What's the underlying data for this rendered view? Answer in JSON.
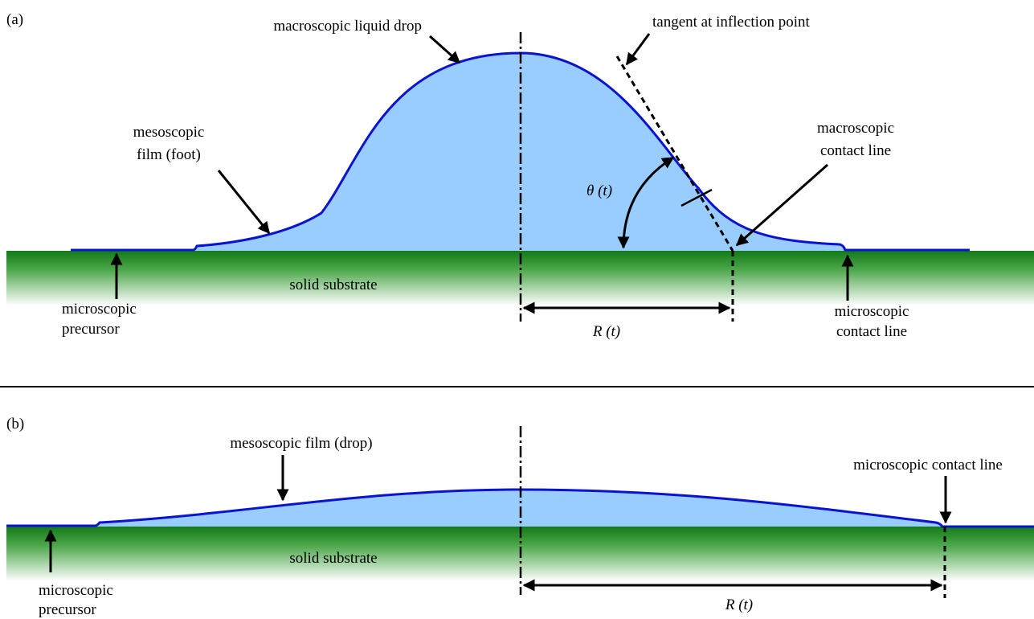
{
  "panel_a": {
    "label": "(a)",
    "drop_label": "macroscopic liquid drop",
    "tangent_label": "tangent at inflection point",
    "foot_label": [
      "mesoscopic",
      "film (foot)"
    ],
    "macro_contact_label": [
      "macroscopic",
      "contact line"
    ],
    "angle_label": "θ (t)",
    "substrate_label": "solid substrate",
    "precursor_label": [
      "microscopic",
      "precursor"
    ],
    "radius_label": "R (t)",
    "micro_contact_label": [
      "microscopic",
      "contact line"
    ]
  },
  "panel_b": {
    "label": "(b)",
    "drop_label": "mesoscopic film (drop)",
    "micro_contact_label": "microscopic contact line",
    "substrate_label": "solid substrate",
    "precursor_label": [
      "microscopic",
      "precursor"
    ],
    "radius_label": "R (t)"
  }
}
